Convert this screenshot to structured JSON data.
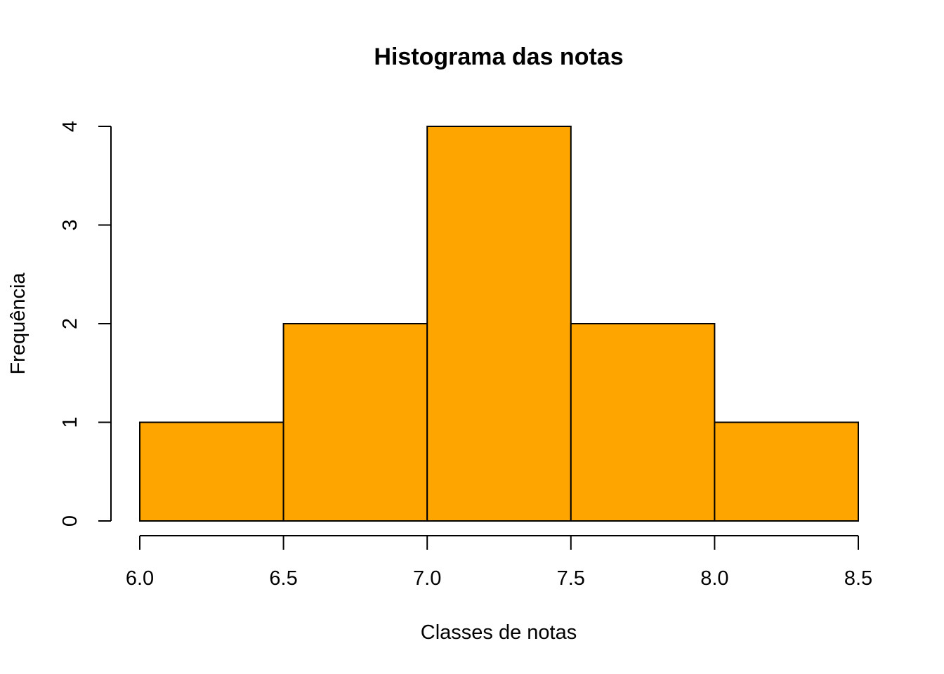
{
  "chart_data": {
    "type": "bar",
    "title": "Histograma das notas",
    "xlabel": "Classes de notas",
    "ylabel": "Frequência",
    "bins": [
      {
        "from": 6.0,
        "to": 6.5,
        "count": 1
      },
      {
        "from": 6.5,
        "to": 7.0,
        "count": 2
      },
      {
        "from": 7.0,
        "to": 7.5,
        "count": 4
      },
      {
        "from": 7.5,
        "to": 8.0,
        "count": 2
      },
      {
        "from": 8.0,
        "to": 8.5,
        "count": 1
      }
    ],
    "categories": [
      "6.0-6.5",
      "6.5-7.0",
      "7.0-7.5",
      "7.5-8.0",
      "8.0-8.5"
    ],
    "values": [
      1,
      2,
      4,
      2,
      1
    ],
    "xlim": [
      6.0,
      8.5
    ],
    "ylim": [
      0,
      4
    ],
    "x_ticks": [
      "6.0",
      "6.5",
      "7.0",
      "7.5",
      "8.0",
      "8.5"
    ],
    "y_ticks": [
      "0",
      "1",
      "2",
      "3",
      "4"
    ],
    "bar_color": "#FFA500",
    "grid": false,
    "legend": "none"
  }
}
